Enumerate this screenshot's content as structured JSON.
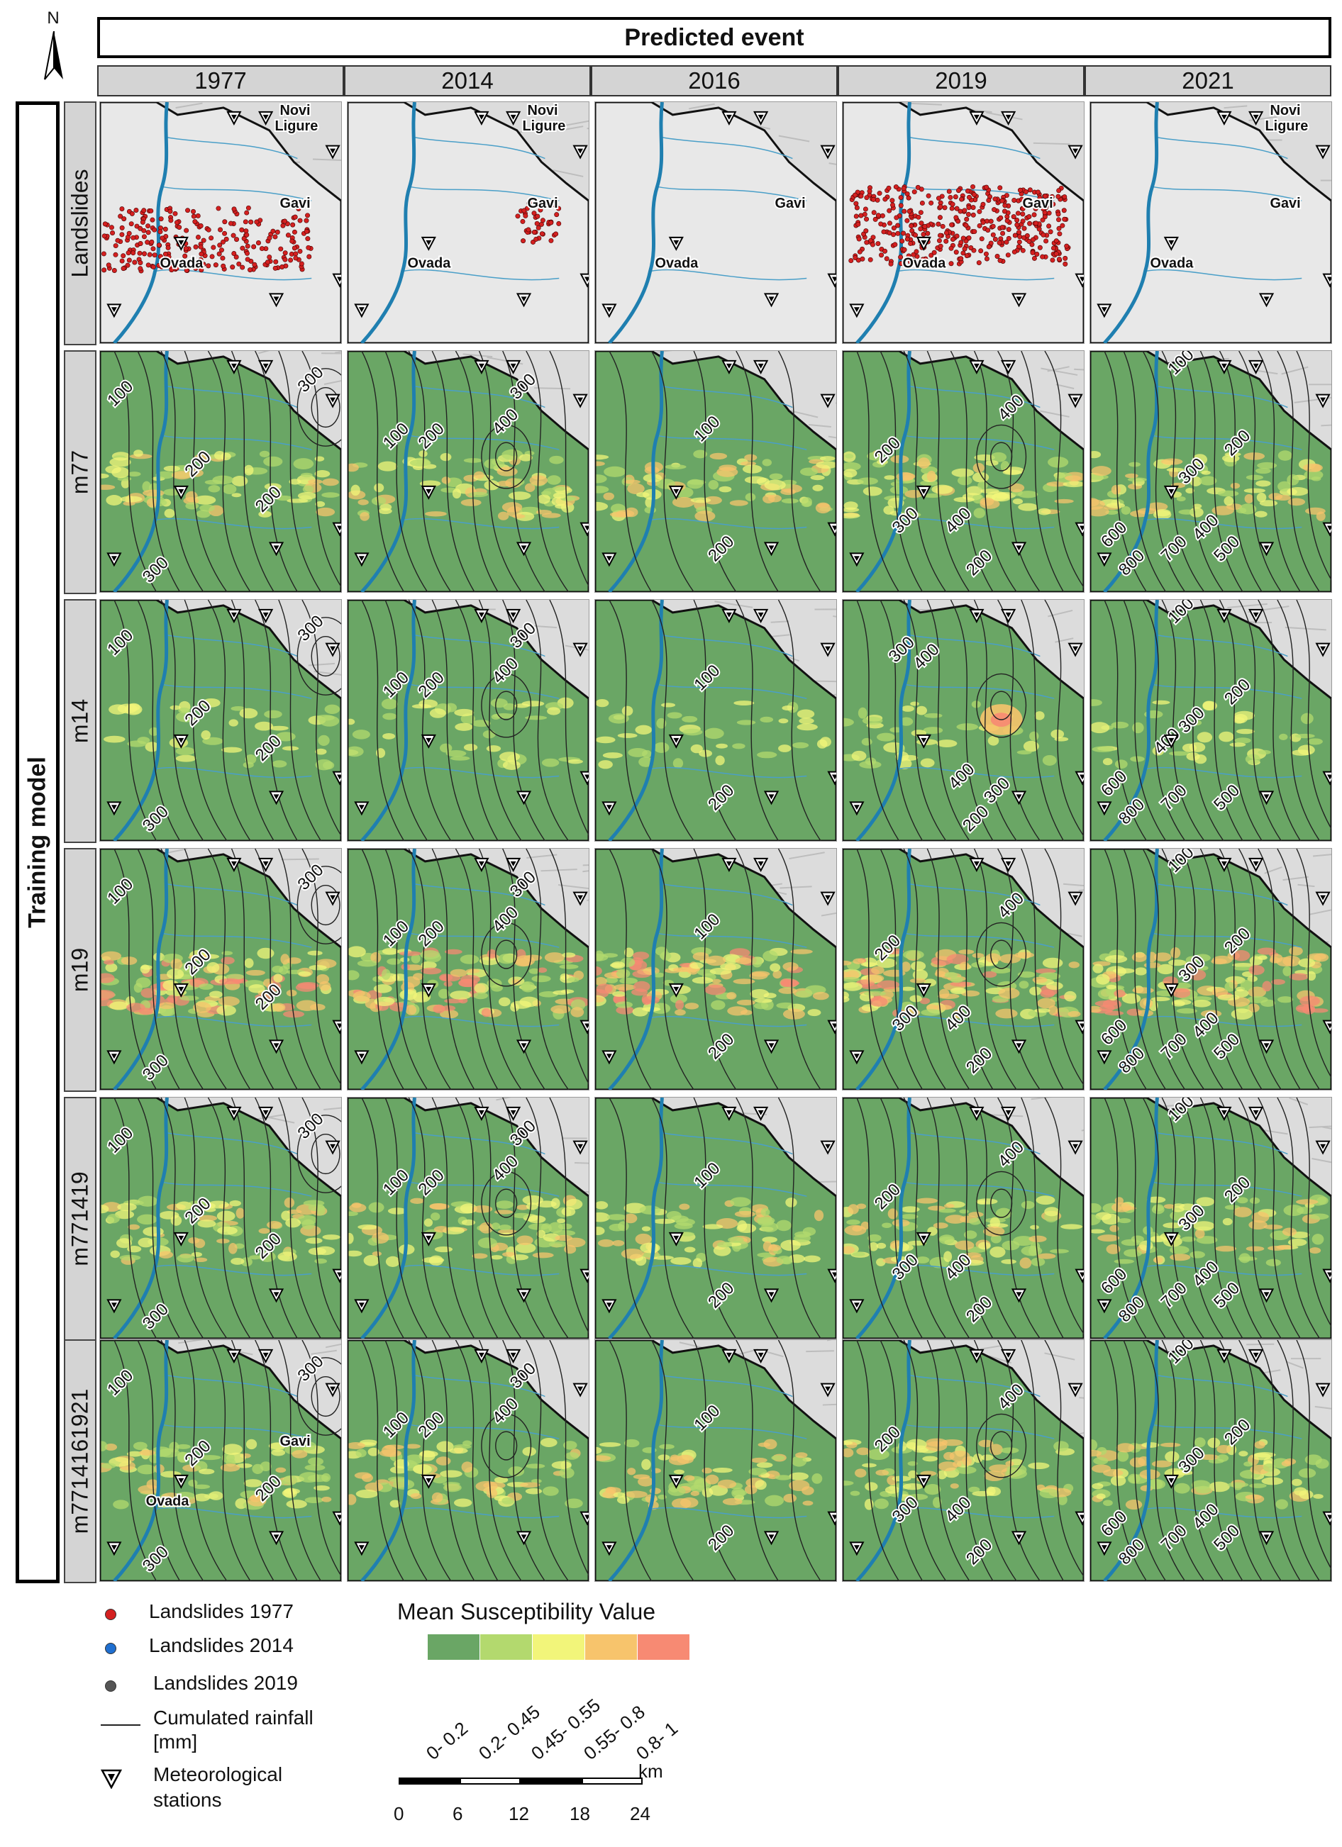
{
  "north_label": "N",
  "header_title": "Predicted event",
  "years": [
    "1977",
    "2014",
    "2016",
    "2019",
    "2021"
  ],
  "side_title": "Training model",
  "row_labels": [
    "Landslides",
    "m77",
    "m14",
    "m19",
    "m771419",
    "m7714161921"
  ],
  "place_names": {
    "novi": "Novi",
    "ligure": "Ligure",
    "gavi": "Gavi",
    "ovada": "Ovada"
  },
  "legend": {
    "landslides_1977": "Landslides 1977",
    "landslides_2014": "Landslides 2014",
    "landslides_2019": "Landslides 2019",
    "rainfall_line1": "Cumulated rainfall",
    "rainfall_line2": "[mm]",
    "stations_line1": "Meteorological",
    "stations_line2": "stations",
    "dot_colors": [
      "#d42020",
      "#1f6fd0",
      "#555555"
    ]
  },
  "susceptibility": {
    "title": "Mean Susceptibility Value",
    "classes": [
      {
        "label": "0- 0.2",
        "color": "#6aa665"
      },
      {
        "label": "0.2- 0.45",
        "color": "#b3d96e"
      },
      {
        "label": "0.45- 0.55",
        "color": "#f2f57a"
      },
      {
        "label": "0.55- 0.8",
        "color": "#f7c46c"
      },
      {
        "label": "0.8- 1",
        "color": "#f78a73"
      }
    ]
  },
  "scale": {
    "unit": "km",
    "ticks": [
      "0",
      "6",
      "12",
      "18",
      "24"
    ]
  },
  "contour_labels": {
    "m_1977": [
      "100",
      "200",
      "200",
      "300",
      "300"
    ],
    "m_2014": [
      "100",
      "200",
      "300",
      "400"
    ],
    "m_2016": [
      "100",
      "200"
    ],
    "m_2019": [
      "200",
      "300",
      "400",
      "400",
      "200"
    ],
    "m_2021": [
      "100",
      "200",
      "300",
      "400",
      "500",
      "600",
      "700",
      "800"
    ],
    "m14_2019": [
      "300",
      "400",
      "400",
      "300",
      "200"
    ],
    "m14_2021": [
      "100",
      "200",
      "300",
      "400",
      "500",
      "600",
      "700",
      "800"
    ]
  }
}
